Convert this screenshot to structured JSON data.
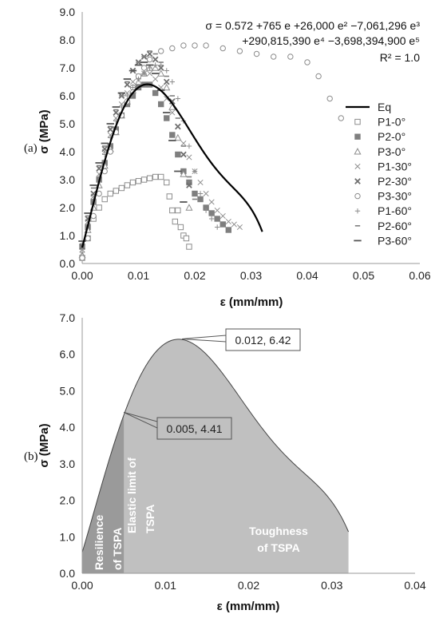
{
  "chart_data": [
    {
      "panel_label": "(a)",
      "type": "scatter",
      "xlabel": "ε (mm/mm)",
      "ylabel": "σ (MPa)",
      "xlim": [
        0,
        0.06
      ],
      "ylim": [
        0,
        9
      ],
      "xticks": [
        "0.00",
        "0.01",
        "0.02",
        "0.03",
        "0.04",
        "0.05",
        "0.06"
      ],
      "yticks": [
        "0.0",
        "1.0",
        "2.0",
        "3.0",
        "4.0",
        "5.0",
        "6.0",
        "7.0",
        "8.0",
        "9.0"
      ],
      "grid": false,
      "legend_position": "right",
      "equation": {
        "line1": "σ = 0.572 +765 e +26,000 e² −7,061,296 e³",
        "line2": "+290,815,390 e⁴ −3,698,394,900 e⁵",
        "line3": "R² = 1.0"
      },
      "fit": {
        "name": "Eq",
        "coefficients": [
          0.572,
          765,
          26000,
          -7061296,
          290815390,
          -3698394900
        ],
        "x_range": [
          0,
          0.032
        ]
      },
      "series": [
        {
          "name": "P1-0°",
          "marker": "square-open",
          "color": "#8c8c8c",
          "x": [
            0.0,
            0.001,
            0.002,
            0.003,
            0.004,
            0.005,
            0.006,
            0.007,
            0.008,
            0.009,
            0.01,
            0.011,
            0.012,
            0.013,
            0.014,
            0.015,
            0.0155,
            0.016,
            0.0165,
            0.017,
            0.0175,
            0.018,
            0.0185,
            0.019
          ],
          "y": [
            0.2,
            0.9,
            1.6,
            2.0,
            2.3,
            2.5,
            2.6,
            2.7,
            2.8,
            2.9,
            2.95,
            3.0,
            3.05,
            3.1,
            3.1,
            2.9,
            2.4,
            1.9,
            1.5,
            1.9,
            1.3,
            1.0,
            0.9,
            0.6
          ]
        },
        {
          "name": "P2-0°",
          "marker": "square-filled",
          "color": "#7f7f7f",
          "x": [
            0.0,
            0.001,
            0.002,
            0.003,
            0.004,
            0.005,
            0.006,
            0.007,
            0.008,
            0.009,
            0.01,
            0.011,
            0.012,
            0.013,
            0.014,
            0.015,
            0.016,
            0.017,
            0.018,
            0.019,
            0.02,
            0.021,
            0.022,
            0.023,
            0.024,
            0.025,
            0.026
          ],
          "y": [
            0.6,
            1.3,
            2.2,
            3.0,
            3.6,
            4.2,
            4.8,
            5.3,
            5.7,
            6.0,
            6.3,
            6.4,
            6.4,
            6.1,
            5.7,
            5.2,
            4.6,
            3.9,
            3.3,
            2.9,
            2.5,
            2.3,
            2.0,
            1.8,
            1.6,
            1.4,
            1.2
          ]
        },
        {
          "name": "P3-0°",
          "marker": "triangle-open",
          "color": "#8c8c8c",
          "x": [
            0.0,
            0.001,
            0.002,
            0.003,
            0.004,
            0.005,
            0.006,
            0.007,
            0.008,
            0.009,
            0.01,
            0.011,
            0.012,
            0.013,
            0.014,
            0.015,
            0.016,
            0.017,
            0.018,
            0.019
          ],
          "y": [
            0.3,
            1.2,
            2.0,
            2.8,
            3.5,
            4.1,
            4.7,
            5.3,
            5.8,
            6.2,
            6.5,
            6.8,
            7.0,
            7.0,
            6.8,
            6.3,
            5.6,
            4.5,
            3.2,
            2.0
          ]
        },
        {
          "name": "P1-30°",
          "marker": "x",
          "color": "#8c8c8c",
          "x": [
            0.0,
            0.001,
            0.002,
            0.003,
            0.004,
            0.005,
            0.006,
            0.007,
            0.008,
            0.009,
            0.01,
            0.011,
            0.012,
            0.013,
            0.014,
            0.015,
            0.016,
            0.017,
            0.018,
            0.019,
            0.02,
            0.021,
            0.022,
            0.023,
            0.024,
            0.025,
            0.026,
            0.027,
            0.028
          ],
          "y": [
            0.5,
            1.5,
            2.4,
            3.2,
            4.0,
            4.6,
            5.2,
            5.7,
            6.1,
            6.5,
            6.7,
            6.8,
            6.8,
            6.6,
            6.3,
            5.9,
            5.4,
            4.9,
            4.3,
            3.8,
            3.3,
            2.9,
            2.5,
            2.2,
            1.9,
            1.7,
            1.5,
            1.4,
            1.3
          ]
        },
        {
          "name": "P2-30°",
          "marker": "x-bold",
          "color": "#6f6f6f",
          "x": [
            0.0,
            0.001,
            0.002,
            0.003,
            0.004,
            0.005,
            0.006,
            0.007,
            0.008,
            0.009,
            0.01,
            0.011,
            0.012,
            0.013,
            0.014,
            0.015,
            0.016,
            0.017,
            0.018,
            0.019
          ],
          "y": [
            0.6,
            1.6,
            2.5,
            3.4,
            4.1,
            4.8,
            5.4,
            6.0,
            6.4,
            6.9,
            7.2,
            7.4,
            7.5,
            7.3,
            7.0,
            6.5,
            5.8,
            4.9,
            3.9,
            2.8
          ]
        },
        {
          "name": "P3-30°",
          "marker": "circle-open",
          "color": "#8c8c8c",
          "x": [
            0.0,
            0.001,
            0.002,
            0.003,
            0.004,
            0.005,
            0.006,
            0.007,
            0.008,
            0.009,
            0.01,
            0.011,
            0.012,
            0.014,
            0.016,
            0.018,
            0.02,
            0.022,
            0.025,
            0.028,
            0.031,
            0.034,
            0.037,
            0.04,
            0.042,
            0.044,
            0.046
          ],
          "y": [
            0.2,
            0.9,
            1.7,
            2.5,
            3.3,
            4.0,
            4.7,
            5.3,
            5.8,
            6.3,
            6.7,
            7.0,
            7.3,
            7.6,
            7.7,
            7.8,
            7.8,
            7.8,
            7.7,
            7.6,
            7.5,
            7.4,
            7.4,
            7.2,
            6.7,
            5.9,
            5.2
          ]
        },
        {
          "name": "P1-60°",
          "marker": "plus",
          "color": "#8c8c8c",
          "x": [
            0.0,
            0.001,
            0.002,
            0.003,
            0.004,
            0.005,
            0.006,
            0.007,
            0.008,
            0.009,
            0.01,
            0.011,
            0.012,
            0.013,
            0.014,
            0.015,
            0.016,
            0.017,
            0.018,
            0.019,
            0.02,
            0.021,
            0.022,
            0.023,
            0.024
          ],
          "y": [
            0.4,
            1.4,
            2.3,
            3.1,
            3.9,
            4.5,
            5.1,
            5.6,
            6.0,
            6.3,
            6.6,
            6.8,
            7.0,
            7.1,
            7.1,
            6.9,
            6.5,
            5.9,
            5.1,
            4.2,
            3.3,
            2.5,
            1.9,
            1.6,
            1.3
          ]
        },
        {
          "name": "P2-60°",
          "marker": "dash",
          "color": "#7f7f7f",
          "x": [
            0.0,
            0.001,
            0.002,
            0.003,
            0.004,
            0.005,
            0.006,
            0.007,
            0.008,
            0.009,
            0.01,
            0.011,
            0.012,
            0.013,
            0.014,
            0.015,
            0.016,
            0.017,
            0.018,
            0.019,
            0.02
          ],
          "y": [
            0.7,
            1.7,
            2.7,
            3.5,
            4.2,
            4.9,
            5.5,
            6.0,
            6.5,
            6.9,
            7.2,
            7.4,
            7.6,
            7.5,
            7.2,
            6.7,
            6.0,
            5.2,
            4.2,
            3.1,
            2.3
          ]
        },
        {
          "name": "P3-60°",
          "marker": "dash-long",
          "color": "#555555",
          "x": [
            0.0,
            0.001,
            0.002,
            0.003,
            0.004,
            0.005,
            0.006,
            0.007,
            0.008,
            0.009,
            0.01,
            0.011,
            0.012,
            0.013,
            0.014,
            0.015,
            0.016,
            0.017,
            0.018
          ],
          "y": [
            0.8,
            1.8,
            2.8,
            3.6,
            4.3,
            5.0,
            5.6,
            6.1,
            6.6,
            6.9,
            7.1,
            7.2,
            7.1,
            6.8,
            6.2,
            5.4,
            4.4,
            3.3,
            2.2
          ]
        }
      ]
    },
    {
      "panel_label": "(b)",
      "type": "area",
      "xlabel": "ε (mm/mm)",
      "ylabel": "σ (MPa)",
      "xlim": [
        0,
        0.04
      ],
      "ylim": [
        0,
        7
      ],
      "xticks": [
        "0.00",
        "0.01",
        "0.02",
        "0.03",
        "0.04"
      ],
      "yticks": [
        "0.0",
        "1.0",
        "2.0",
        "3.0",
        "4.0",
        "5.0",
        "6.0",
        "7.0"
      ],
      "grid": false,
      "fill_color": "#c0c0c0",
      "resilience_fill_color": "#9a9a9a",
      "elastic_limit_x": 0.005,
      "curve_end_x": 0.032,
      "callouts": [
        {
          "text": "0.012, 6.42",
          "x": 0.012,
          "y": 6.42
        },
        {
          "text": "0.005, 4.41",
          "x": 0.005,
          "y": 4.41
        }
      ],
      "region_labels": {
        "resilience": [
          "Resilience",
          "of TSPA"
        ],
        "elastic_limit": [
          "Elastic limit of",
          "TSPA"
        ],
        "toughness": [
          "Toughness",
          "of TSPA"
        ]
      }
    }
  ]
}
